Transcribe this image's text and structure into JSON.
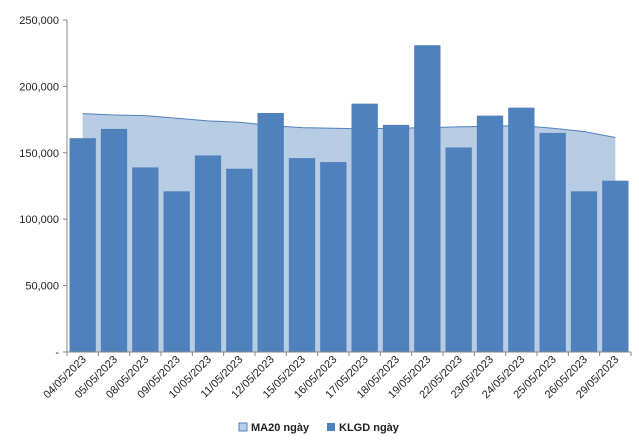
{
  "chart_data": {
    "type": "bar",
    "categories": [
      "04/05/2023",
      "05/05/2023",
      "08/05/2023",
      "09/05/2023",
      "10/05/2023",
      "11/05/2023",
      "12/05/2023",
      "15/05/2023",
      "16/05/2023",
      "17/05/2023",
      "18/05/2023",
      "19/05/2023",
      "22/05/2023",
      "23/05/2023",
      "24/05/2023",
      "25/05/2023",
      "26/05/2023",
      "29/05/2023"
    ],
    "series": [
      {
        "name": "MA20 ngày",
        "kind": "area",
        "color": "#b8cce4",
        "line_color": "#4f81bd",
        "values": [
          179500,
          178500,
          178000,
          176000,
          174000,
          173000,
          170500,
          169000,
          168500,
          168000,
          168500,
          169000,
          169500,
          170000,
          170500,
          168500,
          166000,
          161500
        ]
      },
      {
        "name": "KLGD ngày",
        "kind": "bar",
        "color": "#4f81bd",
        "values": [
          161000,
          168000,
          139000,
          121000,
          148000,
          138000,
          180000,
          146000,
          143000,
          187000,
          171000,
          231000,
          154000,
          178000,
          184000,
          165000,
          121000,
          129000
        ]
      }
    ],
    "ylim": [
      0,
      250000
    ],
    "yticks": [
      0,
      50000,
      100000,
      150000,
      200000,
      250000
    ],
    "ytick_labels": [
      "-",
      "50,000",
      "100,000",
      "150,000",
      "200,000",
      "250,000"
    ],
    "legend_position": "bottom",
    "grid": false
  }
}
